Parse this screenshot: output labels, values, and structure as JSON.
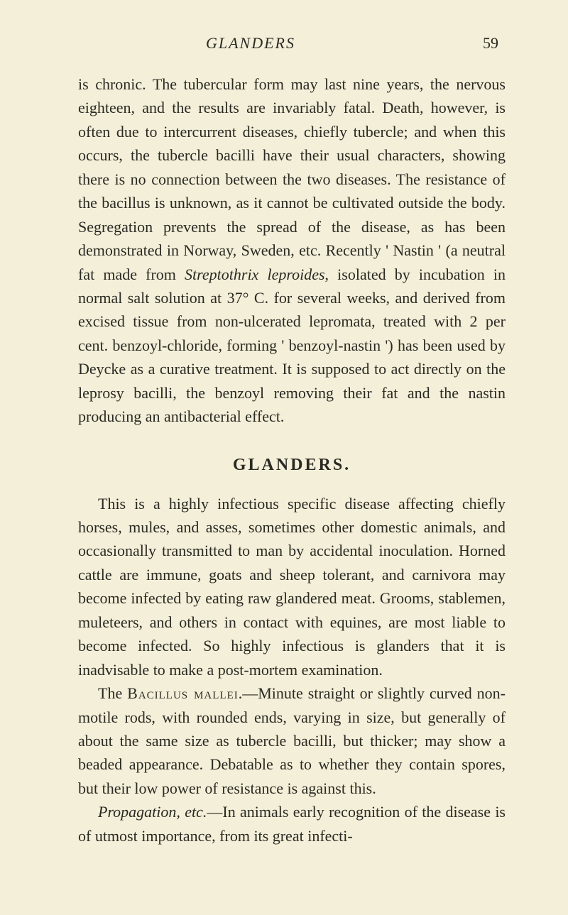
{
  "header": {
    "running_title": "GLANDERS",
    "page_number": "59"
  },
  "paragraph1": {
    "text_a": "is chronic. The tubercular form may last nine years, the nervous eighteen, and the results are invariably fatal. Death, however, is often due to intercurrent diseases, chiefly tubercle; and when this occurs, the tubercle bacilli have their usual characters, showing there is no connection between the two diseases. The resistance of the bacillus is unknown, as it cannot be cultivated outside the body. Segregation prevents the spread of the disease, as has been demonstrated in Norway, Sweden, etc. Recently ' Nastin ' (a neutral fat made from ",
    "italic_a": "Streptothrix leproides",
    "text_b": ", isolated by incubation in normal salt solution at 37° C. for several weeks, and derived from excised tissue from non-ulcerated lepromata, treated with 2 per cent. benzoyl-chloride, forming ' benzoyl-nastin ') has been used by Deycke as a curative treatment. It is supposed to act directly on the leprosy bacilli, the benzoyl removing their fat and the nastin producing an antibacterial effect."
  },
  "section_title": "GLANDERS.",
  "paragraph2": {
    "text": "This is a highly infectious specific disease affecting chiefly horses, mules, and asses, sometimes other domestic animals, and occasionally transmitted to man by acci­dental inoculation. Horned cattle are immune, goats and sheep tolerant, and carnivora may become infected by eating raw glandered meat. Grooms, stablemen, muleteers, and others in contact with equines, are most liable to become infected. So highly infectious is glanders that it is inadvisable to make a post-mortem examination."
  },
  "paragraph3": {
    "label_a": "The ",
    "smallcaps_a": "Bacillus mallei",
    "text_a": ".—Minute straight or slightly curved non-motile rods, with rounded ends, varying in size, but generally of about the same size as tubercle bacilli, but thicker; may show a beaded appearance. Debatable as to whether they contain spores, but their low power of resistance is against this."
  },
  "paragraph4": {
    "italic_a": "Propagation, etc.",
    "text_a": "—In animals early recognition of the disease is of utmost importance, from its great infecti-"
  },
  "colors": {
    "background": "#f4efd8",
    "text": "#2a2a24"
  },
  "typography": {
    "body_fontsize": 22,
    "title_fontsize": 24,
    "line_height": 1.52,
    "font_family": "Georgia, Times New Roman, serif"
  }
}
